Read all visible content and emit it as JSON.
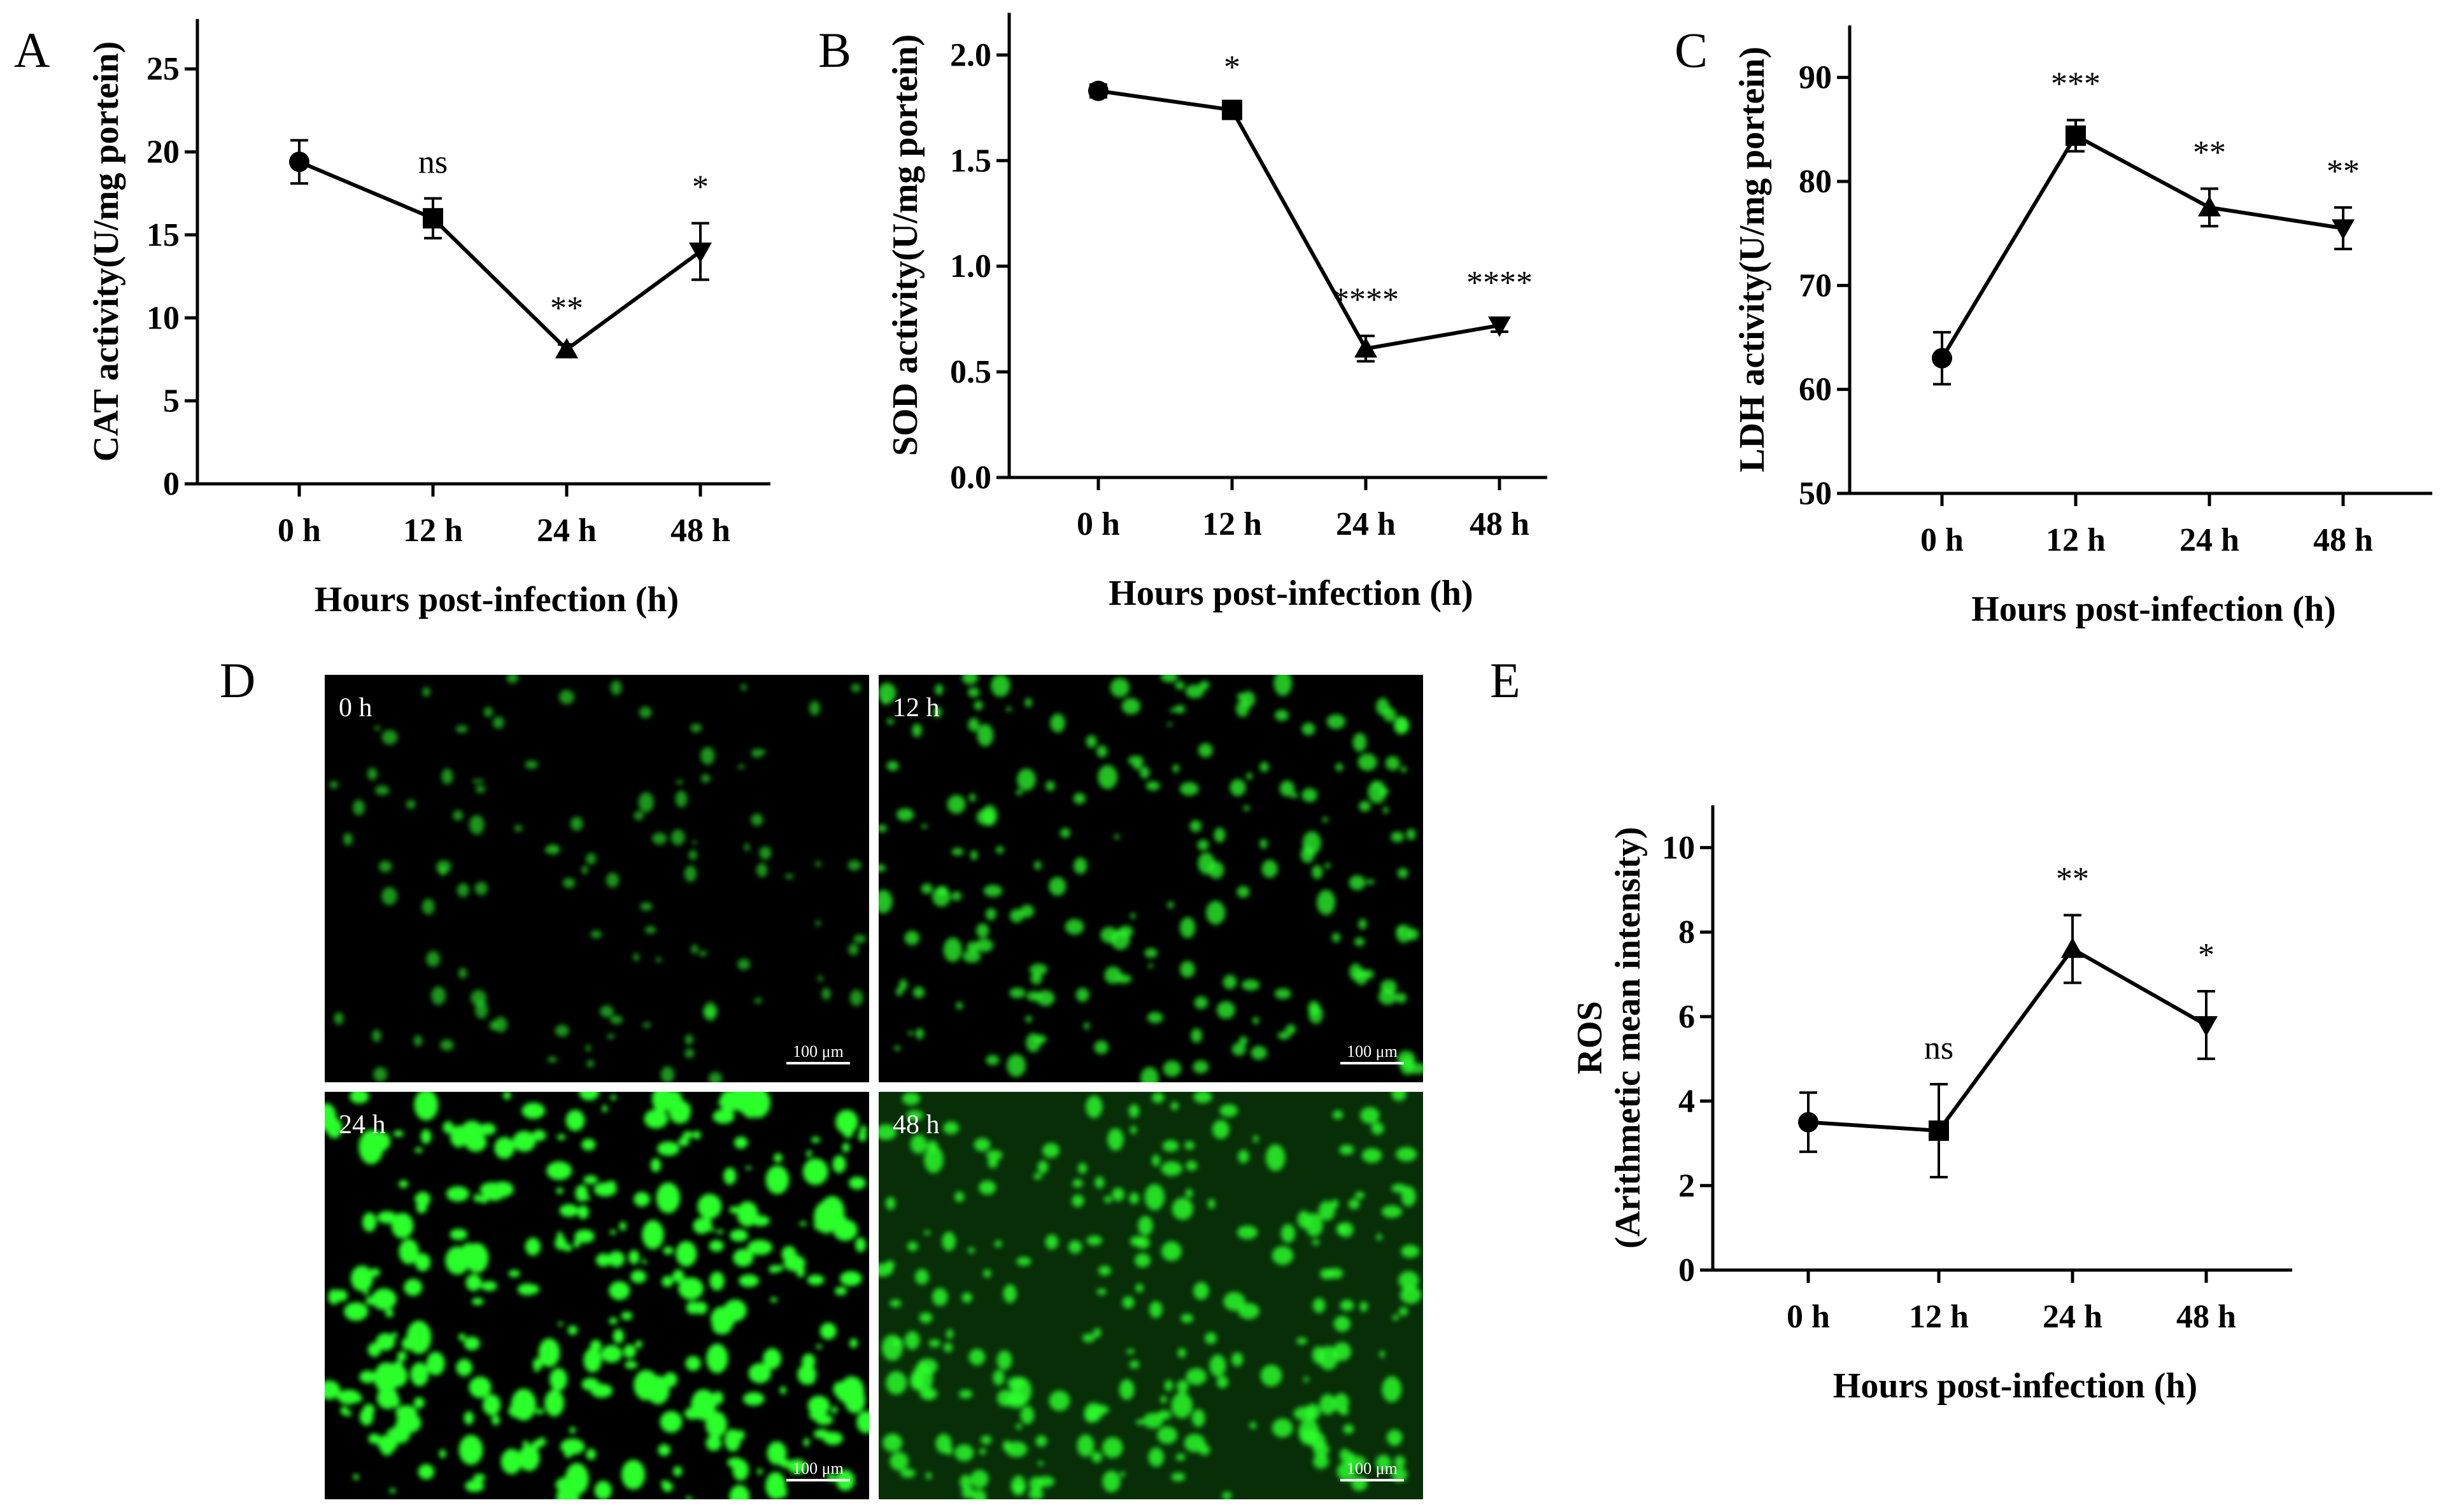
{
  "chart_data": [
    {
      "panel": "A",
      "type": "line",
      "categories": [
        "0 h",
        "12 h",
        "24 h",
        "48 h"
      ],
      "values": [
        19.4,
        16.0,
        8.1,
        14.0
      ],
      "error": [
        1.3,
        1.2,
        0.3,
        1.7
      ],
      "markers": [
        "circle",
        "square",
        "triangle-up",
        "triangle-down"
      ],
      "annotations": [
        "",
        "ns",
        "**",
        "*"
      ],
      "xlabel": "Hours post-infection (h)",
      "ylabel": "CAT activity(U/mg portein)",
      "ylim": [
        0,
        28
      ],
      "yticks": [
        0,
        5,
        10,
        15,
        20,
        25
      ]
    },
    {
      "panel": "B",
      "type": "line",
      "categories": [
        "0 h",
        "12 h",
        "24 h",
        "48 h"
      ],
      "values": [
        1.83,
        1.74,
        0.61,
        0.72
      ],
      "error": [
        0.03,
        0.03,
        0.06,
        0.03
      ],
      "markers": [
        "circle",
        "square",
        "triangle-up",
        "triangle-down"
      ],
      "annotations": [
        "",
        "*",
        "****",
        "****"
      ],
      "xlabel": "Hours post-infection (h)",
      "ylabel": "SOD activity(U/mg portein)",
      "ylim": [
        0,
        2.2
      ],
      "yticks": [
        "0.0",
        "0.5",
        "1.0",
        "1.5",
        "2.0"
      ]
    },
    {
      "panel": "C",
      "type": "line",
      "categories": [
        "0 h",
        "12 h",
        "24 h",
        "48 h"
      ],
      "values": [
        63.0,
        84.4,
        77.5,
        75.5
      ],
      "error": [
        2.5,
        1.5,
        1.8,
        2.0
      ],
      "markers": [
        "circle",
        "square",
        "triangle-up",
        "triangle-down"
      ],
      "annotations": [
        "",
        "***",
        "**",
        "**"
      ],
      "xlabel": "Hours post-infection (h)",
      "ylabel": "LDH activity(U/mg portein)",
      "ylim": [
        50,
        95
      ],
      "yticks": [
        50,
        60,
        70,
        80,
        90
      ]
    },
    {
      "panel": "E",
      "type": "line",
      "categories": [
        "0 h",
        "12 h",
        "24 h",
        "48 h"
      ],
      "values": [
        3.5,
        3.3,
        7.6,
        5.8
      ],
      "error": [
        0.7,
        1.1,
        0.8,
        0.8
      ],
      "markers": [
        "circle",
        "square",
        "triangle-up",
        "triangle-down"
      ],
      "annotations": [
        "",
        "ns",
        "**",
        "*"
      ],
      "xlabel": "Hours post-infection (h)",
      "ylabel": "ROS",
      "ylabel2": "(Arithmetic mean intensity)",
      "ylim": [
        0,
        11
      ],
      "yticks": [
        0,
        2,
        4,
        6,
        8,
        10
      ]
    }
  ],
  "micrographs": {
    "panel": "D",
    "scale_bar": "100 μm",
    "tiles": [
      {
        "label": "0 h",
        "brightness": 0.25
      },
      {
        "label": "12 h",
        "brightness": 0.55
      },
      {
        "label": "24 h",
        "brightness": 1.0
      },
      {
        "label": "48 h",
        "brightness": 0.7
      }
    ]
  },
  "colors": {
    "line": "#000000",
    "fluorescence": "#2bff2b",
    "micrograph_bg": "#000000"
  }
}
